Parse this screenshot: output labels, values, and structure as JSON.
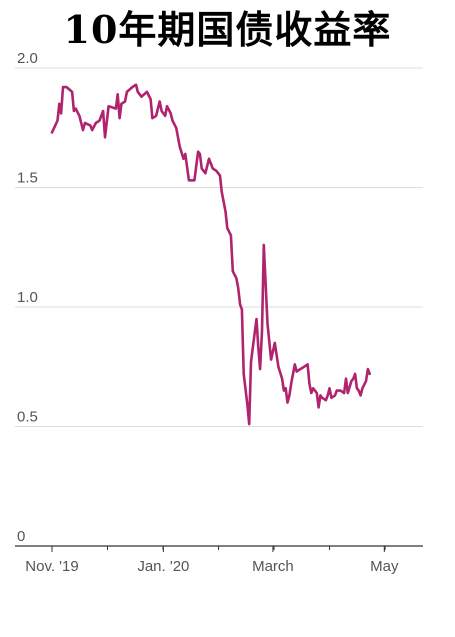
{
  "chart_data": {
    "type": "line",
    "title": "10年期国债收益率",
    "xlabel": "",
    "ylabel": "",
    "ylim": [
      0,
      2.0
    ],
    "grid": true,
    "y_ticks": [
      {
        "value": 0,
        "label": "0"
      },
      {
        "value": 0.5,
        "label": "0.5"
      },
      {
        "value": 1.0,
        "label": "1.0"
      },
      {
        "value": 1.5,
        "label": "1.5"
      },
      {
        "value": 2.0,
        "label": "2.0"
      }
    ],
    "x_ticks": [
      {
        "value": 0,
        "label": "Nov. '19"
      },
      {
        "value": 61,
        "label": "Jan. '20"
      },
      {
        "value": 121,
        "label": "March"
      },
      {
        "value": 182,
        "label": "May"
      }
    ],
    "x_range": [
      0,
      201
    ],
    "series": [
      {
        "color": "#b0246e",
        "points": [
          [
            0,
            1.73
          ],
          [
            3,
            1.78
          ],
          [
            4,
            1.85
          ],
          [
            5,
            1.81
          ],
          [
            6,
            1.92
          ],
          [
            8,
            1.92
          ],
          [
            11,
            1.9
          ],
          [
            12,
            1.82
          ],
          [
            13,
            1.83
          ],
          [
            15,
            1.8
          ],
          [
            17,
            1.74
          ],
          [
            18,
            1.77
          ],
          [
            21,
            1.76
          ],
          [
            22,
            1.74
          ],
          [
            24,
            1.77
          ],
          [
            26,
            1.78
          ],
          [
            28,
            1.82
          ],
          [
            29,
            1.71
          ],
          [
            31,
            1.84
          ],
          [
            35,
            1.83
          ],
          [
            36,
            1.89
          ],
          [
            37,
            1.79
          ],
          [
            38,
            1.85
          ],
          [
            40,
            1.86
          ],
          [
            41,
            1.9
          ],
          [
            44,
            1.92
          ],
          [
            46,
            1.93
          ],
          [
            47,
            1.9
          ],
          [
            49,
            1.88
          ],
          [
            52,
            1.9
          ],
          [
            54,
            1.87
          ],
          [
            55,
            1.79
          ],
          [
            57,
            1.8
          ],
          [
            59,
            1.86
          ],
          [
            60,
            1.82
          ],
          [
            62,
            1.8
          ],
          [
            63,
            1.84
          ],
          [
            65,
            1.81
          ],
          [
            66,
            1.78
          ],
          [
            68,
            1.75
          ],
          [
            70,
            1.67
          ],
          [
            72,
            1.62
          ],
          [
            73,
            1.64
          ],
          [
            75,
            1.53
          ],
          [
            78,
            1.53
          ],
          [
            80,
            1.65
          ],
          [
            81,
            1.64
          ],
          [
            82,
            1.58
          ],
          [
            84,
            1.56
          ],
          [
            86,
            1.62
          ],
          [
            88,
            1.58
          ],
          [
            90,
            1.57
          ],
          [
            92,
            1.55
          ],
          [
            93,
            1.48
          ],
          [
            95,
            1.4
          ],
          [
            96,
            1.33
          ],
          [
            98,
            1.3
          ],
          [
            99,
            1.15
          ],
          [
            101,
            1.12
          ],
          [
            102,
            1.08
          ],
          [
            103,
            1.01
          ],
          [
            104,
            0.99
          ],
          [
            105,
            0.72
          ],
          [
            107,
            0.59
          ],
          [
            108,
            0.51
          ],
          [
            109,
            0.77
          ],
          [
            110,
            0.83
          ],
          [
            112,
            0.95
          ],
          [
            113,
            0.83
          ],
          [
            114,
            0.74
          ],
          [
            115,
            0.9
          ],
          [
            116,
            1.26
          ],
          [
            118,
            0.93
          ],
          [
            120,
            0.78
          ],
          [
            122,
            0.85
          ],
          [
            124,
            0.75
          ],
          [
            126,
            0.7
          ],
          [
            127,
            0.65
          ],
          [
            128,
            0.66
          ],
          [
            129,
            0.6
          ],
          [
            130,
            0.63
          ],
          [
            131,
            0.68
          ],
          [
            133,
            0.76
          ],
          [
            134,
            0.73
          ],
          [
            136,
            0.74
          ],
          [
            138,
            0.75
          ],
          [
            140,
            0.76
          ],
          [
            141,
            0.68
          ],
          [
            142,
            0.64
          ],
          [
            143,
            0.66
          ],
          [
            144,
            0.65
          ],
          [
            145,
            0.64
          ],
          [
            146,
            0.58
          ],
          [
            147,
            0.63
          ],
          [
            148,
            0.62
          ],
          [
            150,
            0.61
          ],
          [
            151,
            0.63
          ],
          [
            152,
            0.66
          ],
          [
            153,
            0.62
          ],
          [
            155,
            0.63
          ],
          [
            156,
            0.65
          ],
          [
            158,
            0.65
          ],
          [
            160,
            0.64
          ],
          [
            161,
            0.7
          ],
          [
            162,
            0.64
          ],
          [
            164,
            0.69
          ],
          [
            165,
            0.7
          ],
          [
            166,
            0.72
          ],
          [
            167,
            0.66
          ],
          [
            168,
            0.65
          ],
          [
            169,
            0.63
          ],
          [
            170,
            0.66
          ],
          [
            172,
            0.69
          ],
          [
            173,
            0.74
          ],
          [
            174,
            0.72
          ]
        ]
      }
    ]
  }
}
